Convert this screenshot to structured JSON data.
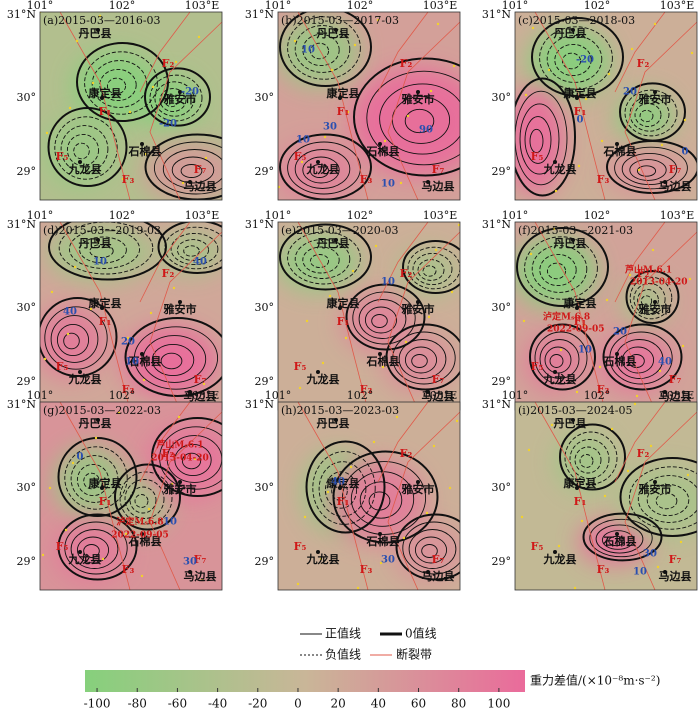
{
  "x_labels": [
    "101°",
    "102°",
    "103°E"
  ],
  "y_labels": [
    "31°N",
    "30°",
    "29°"
  ],
  "places": [
    "丹巴县",
    "康定县",
    "雅安市",
    "石棉县",
    "九龙县",
    "马边县"
  ],
  "faults": [
    "F₁",
    "F₂",
    "F₃",
    "F₅",
    "F₇"
  ],
  "panels": [
    {
      "label": "(a)2015-03—2016-03",
      "contour_labels": [
        -20,
        -20
      ]
    },
    {
      "label": "(b)2015-03—2017-03",
      "contour_labels": [
        10,
        10,
        30,
        90,
        10
      ]
    },
    {
      "label": "(c)2015-03—2018-03",
      "contour_labels": [
        -20,
        20,
        0,
        0
      ]
    },
    {
      "label": "(d)2015-03—2019-03",
      "contour_labels": [
        10,
        40,
        40,
        20,
        10
      ]
    },
    {
      "label": "(e)2015-03—2020-03",
      "contour_labels": [
        10
      ]
    },
    {
      "label": "(f)2015-03—2021-03",
      "contour_labels": [
        10,
        20,
        40
      ],
      "annotations": [
        "芦山Mₛ6.1",
        "2013-04-20",
        "泸定Mₛ6.8",
        "2022-09-05"
      ]
    },
    {
      "label": "(g)2015-03—2022-03",
      "contour_labels": [
        0,
        10,
        30
      ],
      "annotations": [
        "芦山Mₛ6.1",
        "2013-04-20",
        "泸定Mₛ6.8",
        "2022-09-05"
      ]
    },
    {
      "label": "(h)2015-03—2023-03",
      "contour_labels": [
        40,
        30
      ]
    },
    {
      "label": "(i)2015-03—2024-05",
      "contour_labels": [
        30,
        10
      ]
    }
  ],
  "legend": {
    "positive": "正值线",
    "negative": "负值线",
    "zero": "0值线",
    "fault": "断裂带"
  },
  "colorbar": {
    "title": "重力差值/(×10⁻⁸m·s⁻²)",
    "ticks": [
      -100,
      -80,
      -60,
      -40,
      -20,
      0,
      20,
      40,
      60,
      80,
      100
    ],
    "lim": [
      -106,
      113
    ],
    "colors": [
      "#86d07c",
      "#c9b698",
      "#ea6b9b"
    ]
  }
}
